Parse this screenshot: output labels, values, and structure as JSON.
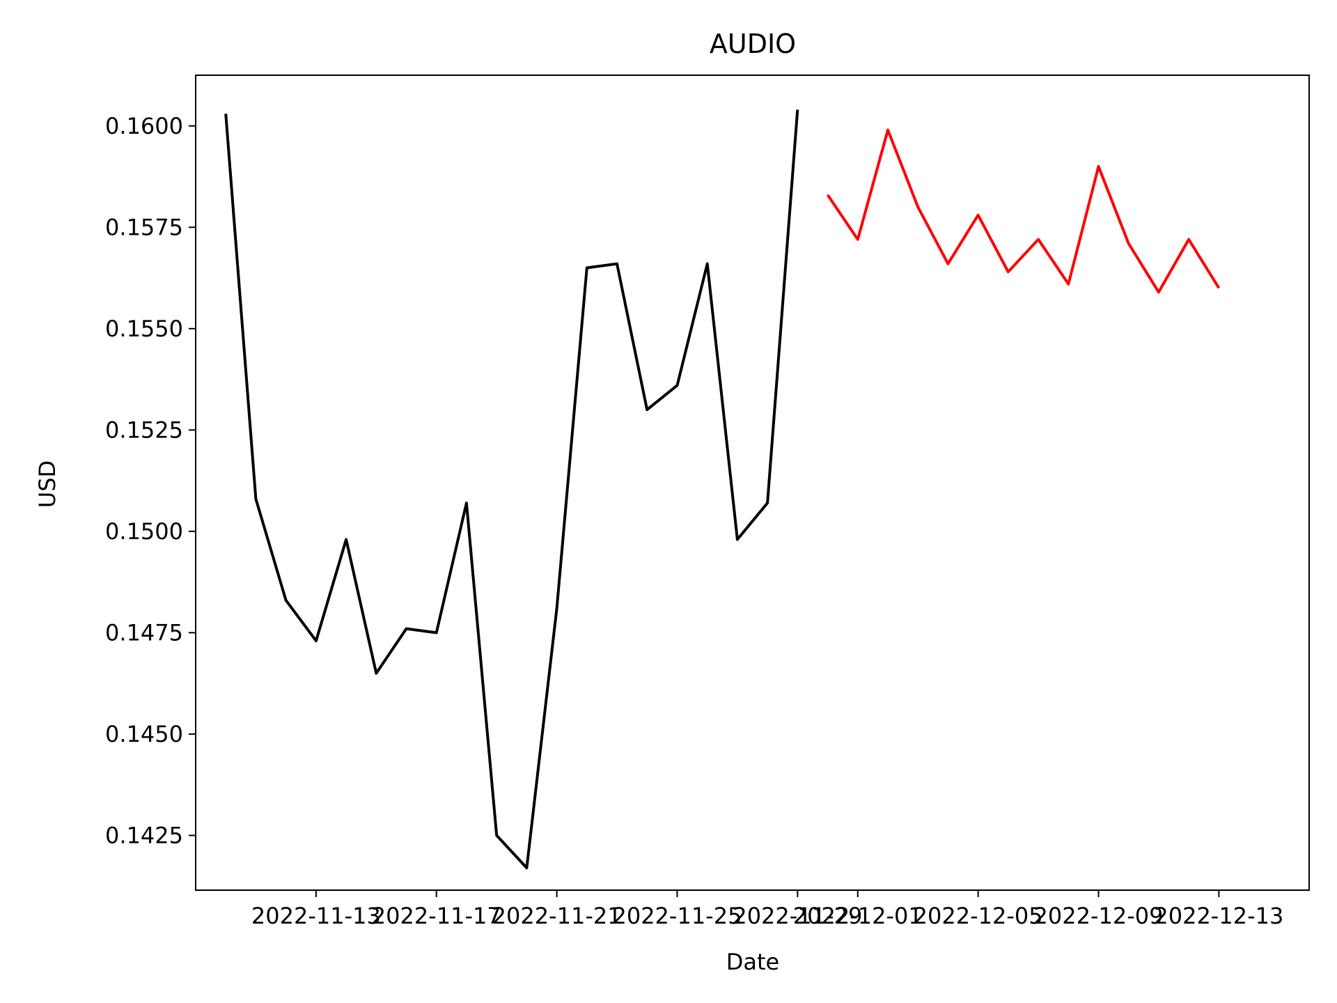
{
  "chart_data": {
    "type": "line",
    "title": "AUDIO",
    "xlabel": "Date",
    "ylabel": "USD",
    "grid": false,
    "legend": "none",
    "xlim": [
      "2022-11-09",
      "2022-12-16"
    ],
    "ylim": [
      0.14115,
      0.16125
    ],
    "x_ticks": [
      "2022-11-13",
      "2022-11-17",
      "2022-11-21",
      "2022-11-25",
      "2022-11-29",
      "2022-12-01",
      "2022-12-05",
      "2022-12-09",
      "2022-12-13"
    ],
    "y_ticks": [
      "0.1425",
      "0.1450",
      "0.1475",
      "0.1500",
      "0.1525",
      "0.1550",
      "0.1575",
      "0.1600"
    ],
    "series": [
      {
        "color": "#000000",
        "x": [
          "2022-11-10",
          "2022-11-11",
          "2022-11-12",
          "2022-11-13",
          "2022-11-14",
          "2022-11-15",
          "2022-11-16",
          "2022-11-17",
          "2022-11-18",
          "2022-11-19",
          "2022-11-20",
          "2022-11-21",
          "2022-11-22",
          "2022-11-23",
          "2022-11-24",
          "2022-11-25",
          "2022-11-26",
          "2022-11-27",
          "2022-11-28",
          "2022-11-29"
        ],
        "values": [
          0.1603,
          0.1508,
          0.1483,
          0.1473,
          0.1498,
          0.1465,
          0.1476,
          0.1475,
          0.1507,
          0.1425,
          0.1417,
          0.1481,
          0.1565,
          0.1566,
          0.153,
          0.1536,
          0.1566,
          0.1498,
          0.1507,
          0.1604
        ]
      },
      {
        "color": "#ff0000",
        "x": [
          "2022-11-30",
          "2022-12-01",
          "2022-12-02",
          "2022-12-03",
          "2022-12-04",
          "2022-12-05",
          "2022-12-06",
          "2022-12-07",
          "2022-12-08",
          "2022-12-09",
          "2022-12-10",
          "2022-12-11",
          "2022-12-12",
          "2022-12-13"
        ],
        "values": [
          0.1583,
          0.1572,
          0.1599,
          0.158,
          0.1566,
          0.1578,
          0.1564,
          0.1572,
          0.1561,
          0.159,
          0.1571,
          0.1559,
          0.1572,
          0.156
        ]
      }
    ]
  }
}
